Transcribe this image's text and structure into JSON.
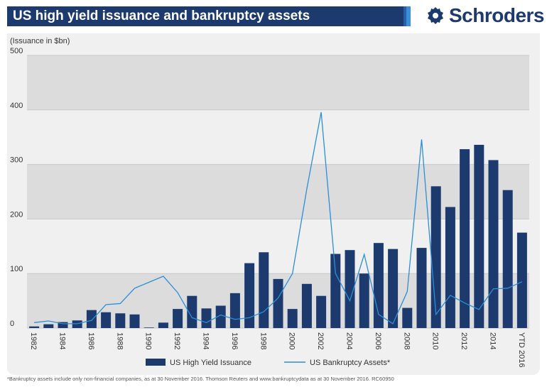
{
  "title": "US high yield issuance and bankruptcy assets",
  "logo": "Schroders",
  "footnote": "*Bankruptcy assets include only non-financial companies, as at 30 November 2016. Thomson Reuters and www.bankruptcydata as at 30 November 2016. RC60950",
  "colors": {
    "bar": "#1c3a6e",
    "line": "#2b8fd6",
    "band": "#dcdcdd",
    "panel": "#f0f0f1"
  },
  "chart_data": {
    "type": "bar",
    "ylabel": "(Issuance in $bn)",
    "ylim": [
      0,
      500
    ],
    "yticks": [
      0,
      100,
      200,
      300,
      400,
      500
    ],
    "grid": true,
    "legend_position": "bottom",
    "categories": [
      "1982",
      "1983",
      "1984",
      "1985",
      "1986",
      "1987",
      "1988",
      "1989",
      "1990",
      "1991",
      "1992",
      "1993",
      "1994",
      "1995",
      "1996",
      "1997",
      "1998",
      "1999",
      "2000",
      "2001",
      "2002",
      "2003",
      "2004",
      "2005",
      "2006",
      "2007",
      "2008",
      "2009",
      "2010",
      "2011",
      "2012",
      "2013",
      "2014",
      "2015",
      "YTD 2016"
    ],
    "xtick_labels": [
      "1982",
      "",
      "1984",
      "",
      "1986",
      "",
      "1988",
      "",
      "1990",
      "",
      "1992",
      "",
      "1994",
      "",
      "1996",
      "",
      "1998",
      "",
      "2000",
      "",
      "2002",
      "",
      "2004",
      "",
      "2006",
      "",
      "2008",
      "",
      "2010",
      "",
      "2012",
      "",
      "2014",
      "",
      "YTD 2016"
    ],
    "series": [
      {
        "name": "US High Yield Issuance",
        "type": "bar",
        "values": [
          3,
          7,
          11,
          14,
          33,
          29,
          27,
          25,
          1,
          10,
          35,
          59,
          36,
          41,
          64,
          119,
          139,
          90,
          35,
          81,
          59,
          136,
          143,
          100,
          156,
          145,
          37,
          147,
          260,
          222,
          328,
          336,
          308,
          253,
          175
        ]
      },
      {
        "name": "US Bankruptcy Assets*",
        "type": "line",
        "values": [
          10,
          13,
          8,
          8,
          14,
          43,
          45,
          73,
          84,
          95,
          65,
          19,
          10,
          24,
          16,
          19,
          30,
          55,
          100,
          255,
          396,
          100,
          50,
          135,
          25,
          8,
          67,
          346,
          25,
          60,
          46,
          34,
          72,
          73,
          85
        ]
      }
    ]
  }
}
